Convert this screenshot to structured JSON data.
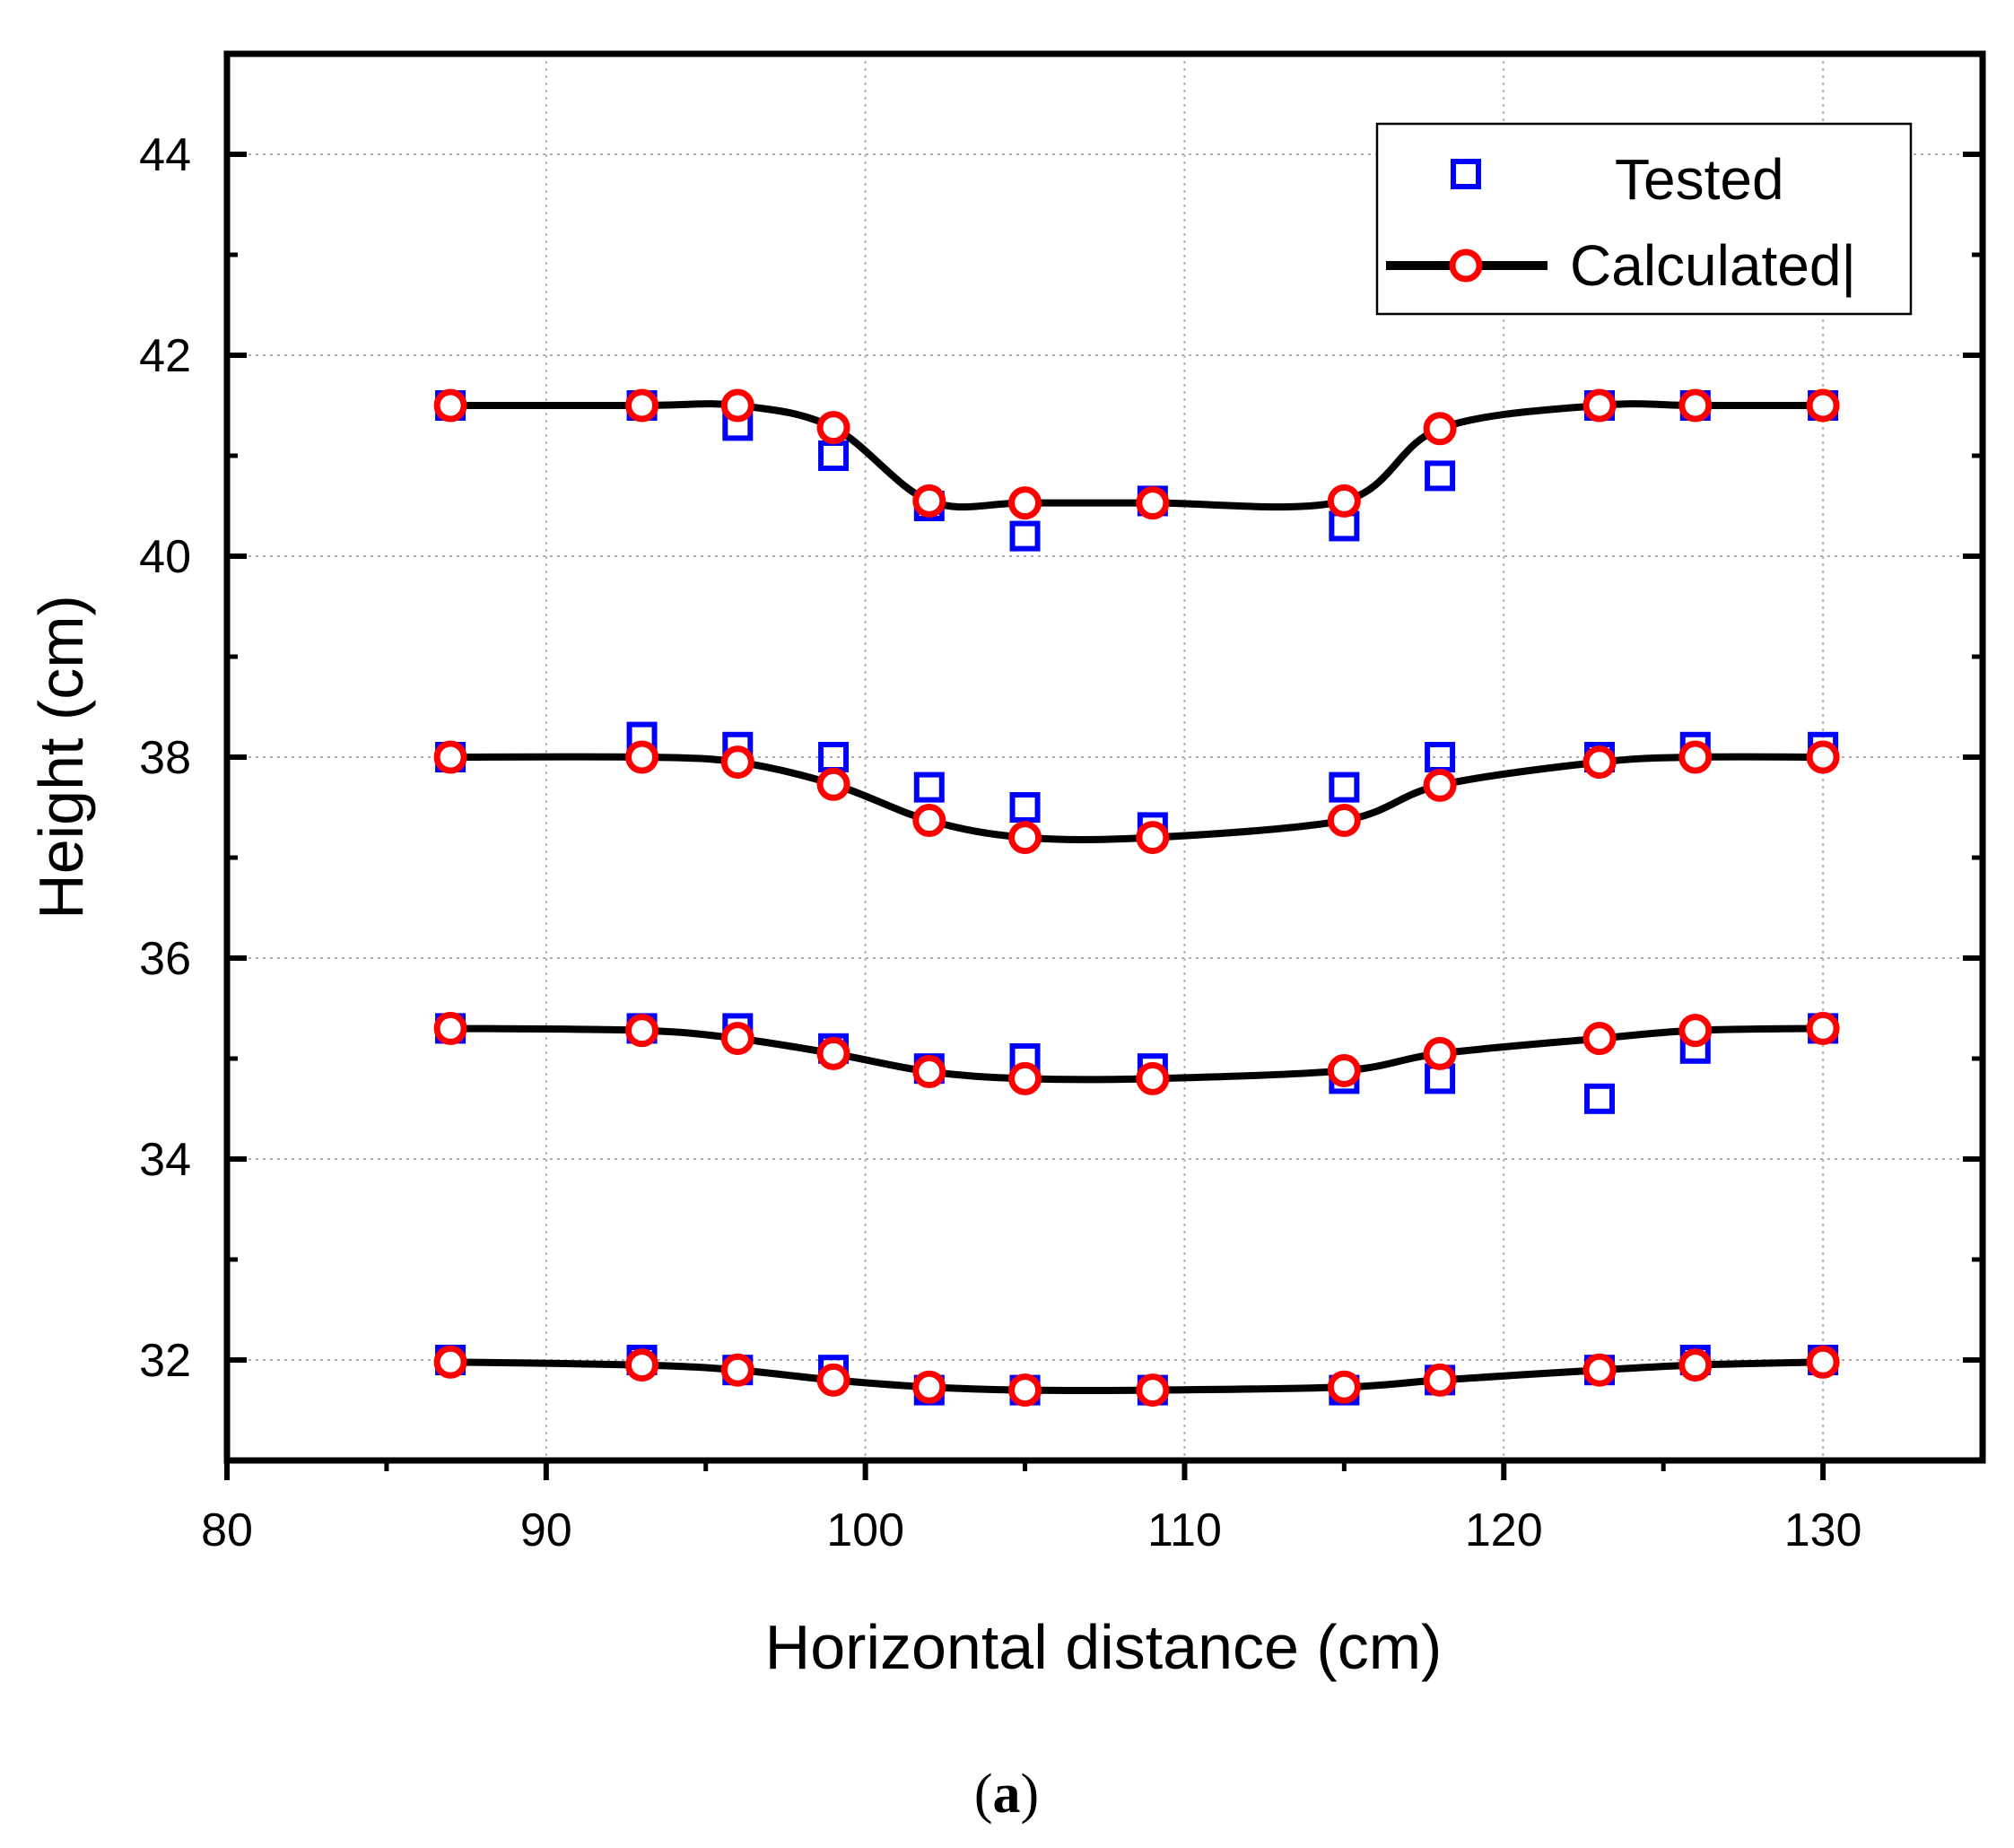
{
  "chart_data": {
    "type": "scatter",
    "caption_open": "(",
    "caption_letter": "a",
    "caption_close": ")",
    "xlabel": "Horizontal distance (cm)",
    "ylabel": "Height (cm)",
    "xlim": [
      80,
      135
    ],
    "ylim": [
      31,
      45
    ],
    "x_ticks": [
      80,
      90,
      100,
      110,
      120,
      130
    ],
    "y_ticks": [
      32,
      34,
      36,
      38,
      40,
      42,
      44
    ],
    "grid": true,
    "legend_position": "top-right",
    "legend": {
      "tested_label": "Tested",
      "calculated_label": "Calculated|"
    },
    "colors": {
      "tested": "#0000ff",
      "calculated_line": "#000000",
      "calculated_marker": "#ff0000",
      "grid": "#b0b0b0"
    },
    "x": [
      87,
      93,
      96,
      99,
      102,
      105,
      109,
      115,
      118,
      123,
      126,
      130
    ],
    "series": [
      {
        "name": "Tested",
        "profiles": [
          [
            41.5,
            41.5,
            41.3,
            41.0,
            40.5,
            40.2,
            40.55,
            40.3,
            40.8,
            41.5,
            41.5,
            41.5
          ],
          [
            38.0,
            38.2,
            38.1,
            38.0,
            37.7,
            37.5,
            37.3,
            37.7,
            38.0,
            38.0,
            38.1,
            38.1
          ],
          [
            35.3,
            35.3,
            35.3,
            35.1,
            34.9,
            35.0,
            34.9,
            34.8,
            34.8,
            34.6,
            35.1,
            35.3
          ],
          [
            32.0,
            32.0,
            31.9,
            31.9,
            31.7,
            31.7,
            31.7,
            31.7,
            31.8,
            31.9,
            32.0,
            32.0
          ]
        ]
      },
      {
        "name": "Calculated",
        "profiles": [
          [
            41.5,
            41.5,
            41.5,
            41.28,
            40.55,
            40.53,
            40.53,
            40.55,
            41.27,
            41.5,
            41.5,
            41.5
          ],
          [
            38.0,
            38.0,
            37.95,
            37.73,
            37.37,
            37.2,
            37.2,
            37.37,
            37.72,
            37.95,
            38.0,
            38.0
          ],
          [
            35.3,
            35.28,
            35.2,
            35.05,
            34.87,
            34.8,
            34.8,
            34.88,
            35.05,
            35.2,
            35.28,
            35.3
          ],
          [
            31.98,
            31.95,
            31.9,
            31.8,
            31.73,
            31.7,
            31.7,
            31.73,
            31.8,
            31.9,
            31.95,
            31.98
          ]
        ]
      }
    ]
  }
}
